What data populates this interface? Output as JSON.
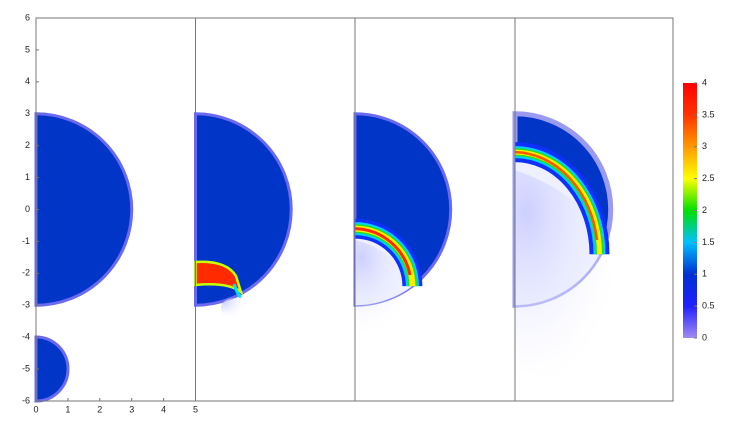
{
  "chart_data": {
    "type": "field",
    "xlim": [
      0,
      5
    ],
    "ylim": [
      -6,
      6
    ],
    "xticks": [
      0,
      1,
      2,
      3,
      4,
      5
    ],
    "yticks": [
      -6,
      -5,
      -4,
      -3,
      -2,
      -1,
      0,
      1,
      2,
      3,
      4,
      5,
      6
    ],
    "colorbar": {
      "lim": [
        0,
        4
      ],
      "ticks": [
        0,
        0.5,
        1,
        1.5,
        2,
        2.5,
        3,
        3.5,
        4
      ],
      "colormap": [
        "#a08cf0",
        "#2020ff",
        "#0030d0",
        "#00c0ff",
        "#00e000",
        "#ffff00",
        "#ff9900",
        "#ff3300",
        "#ff0000"
      ]
    }
  }
}
